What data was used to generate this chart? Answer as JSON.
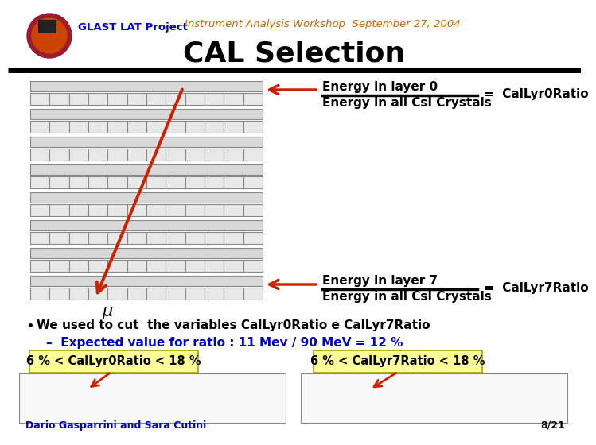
{
  "bg_color": "#ffffff",
  "title_text": "CAL Selection",
  "title_fontsize": 26,
  "title_color": "#000000",
  "subtitle_text": "Instrument Analysis Workshop  September 27, 2004",
  "subtitle_color": "#cc6600",
  "subtitle_fontsize": 9.5,
  "glast_text": "GLAST LAT Project",
  "glast_color": "#0000cc",
  "glast_fontsize": 9.5,
  "separator_color": "#000000",
  "arrow_color": "#cc2200",
  "mu_text": "μ",
  "mu_fontsize": 15,
  "mu_color": "#000000",
  "energy_layer0_text": "Energy in layer 0",
  "energy_all_text": "Energy in all CsI Crystals",
  "ratio0_text": "=  CalLyr0Ratio",
  "energy_layer7_text": "Energy in layer 7",
  "ratio7_text": "=  CalLyr7Ratio",
  "bullet_text": "We used to cut  the variables CalLyr0Ratio e CalLyr7Ratio",
  "bullet_color": "#000000",
  "bullet_fontsize": 11,
  "expected_text": "–  Expected value for ratio : 11 Mev / 90 MeV = 12 %",
  "expected_color": "#0000cc",
  "expected_fontsize": 11,
  "label0_text": "6 % < CalLyr0Ratio < 18 %",
  "label7_text": "6 % < CalLyr7Ratio < 18 %",
  "label_bg": "#ffff99",
  "label_fontsize": 10.5,
  "footer_author": "Dario Gasparrini and Sara Cutini",
  "footer_page": "8/21",
  "footer_color": "#0000cc",
  "footer_fontsize": 9
}
